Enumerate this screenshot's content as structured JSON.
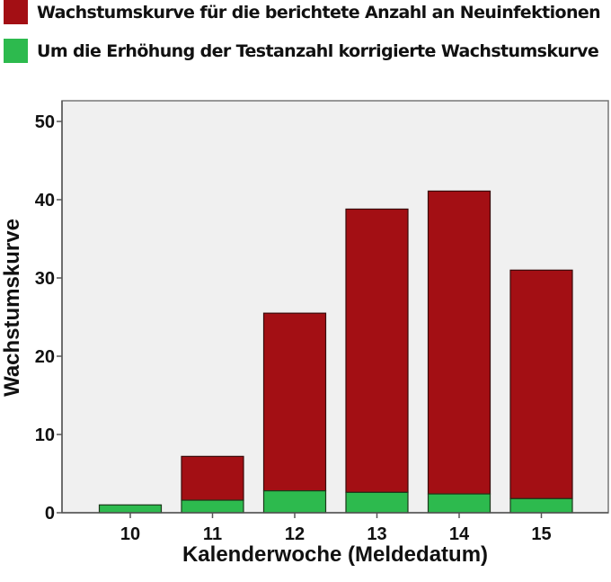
{
  "legend": {
    "items": [
      {
        "label": "Wachstumskurve für die berichtete Anzahl an Neuinfektionen",
        "color": "#a30f14"
      },
      {
        "label": "Um die Erhöhung der Testanzahl korrigierte Wachstumskurve",
        "color": "#2dba4e"
      }
    ]
  },
  "axes": {
    "ylabel": "Wachstumskurve",
    "xlabel": "Kalenderwoche (Meldedatum)",
    "yticks": [
      "0",
      "10",
      "20",
      "30",
      "40",
      "50"
    ],
    "xticks": [
      "10",
      "11",
      "12",
      "13",
      "14",
      "15"
    ]
  },
  "colors": {
    "reported": "#a30f14",
    "corrected": "#2dba4e",
    "plot_bg": "#f0f0f0",
    "frame": "#777777"
  },
  "chart_data": {
    "type": "bar",
    "stacked_overlay": true,
    "title": "",
    "xlabel": "Kalenderwoche (Meldedatum)",
    "ylabel": "Wachstumskurve",
    "categories": [
      "10",
      "11",
      "12",
      "13",
      "14",
      "15"
    ],
    "series": [
      {
        "name": "Wachstumskurve für die berichtete Anzahl an Neuinfektionen",
        "color": "#a30f14",
        "values": [
          1.0,
          7.2,
          25.5,
          38.8,
          41.1,
          31.0
        ]
      },
      {
        "name": "Um die Erhöhung der Testanzahl korrigierte Wachstumskurve",
        "color": "#2dba4e",
        "values": [
          1.0,
          1.6,
          2.8,
          2.6,
          2.4,
          1.8
        ]
      }
    ],
    "ylim": [
      0,
      50
    ],
    "yticks": [
      0,
      10,
      20,
      30,
      40,
      50
    ],
    "grid": false,
    "legend_position": "top"
  }
}
